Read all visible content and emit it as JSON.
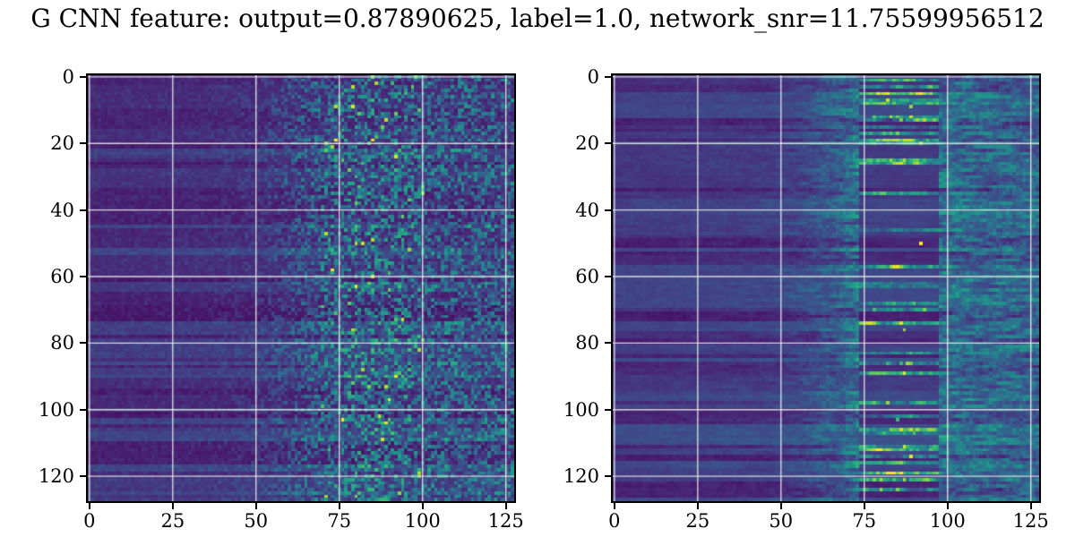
{
  "figure": {
    "title": "G CNN feature: output=0.87890625, label=1.0, network_snr=11.75599956512",
    "title_truncated_both_sides": true,
    "background": "#ffffff",
    "font_color": "#000000"
  },
  "chart_data": [
    {
      "panel": "left",
      "type": "heatmap",
      "title": "",
      "xlabel": "",
      "ylabel": "",
      "shape": [
        128,
        128
      ],
      "xlim": [
        -0.5,
        127.5
      ],
      "ylim": [
        127.5,
        -0.5
      ],
      "xticks": [
        0,
        25,
        50,
        75,
        100,
        125
      ],
      "yticks": [
        0,
        20,
        40,
        60,
        80,
        100,
        120
      ],
      "grid": true,
      "grid_color": "#e8e8e8",
      "colormap": "viridis",
      "value_range": [
        0,
        1
      ],
      "pattern": {
        "description": "smooth dark purple/indigo horizontal row bands for x<50, increasing cyan speckle noise from x~50, dense bright speckles with green/yellow hotspots for x~72-100, moderate speckle for x>100",
        "seed": 1337,
        "row_base_range": [
          0.05,
          0.21
        ],
        "row_change_prob": 0.45,
        "noise_profile": [
          [
            0,
            0.05
          ],
          [
            35,
            0.07
          ],
          [
            50,
            0.12
          ],
          [
            58,
            0.22
          ],
          [
            68,
            0.38
          ],
          [
            75,
            0.5
          ],
          [
            95,
            0.52
          ],
          [
            103,
            0.4
          ],
          [
            127,
            0.42
          ]
        ],
        "streaky": false,
        "hotspot_band": [
          70,
          100
        ],
        "hotspot_rate": 0.02
      }
    },
    {
      "panel": "right",
      "type": "heatmap",
      "title": "",
      "xlabel": "",
      "ylabel": "",
      "shape": [
        128,
        128
      ],
      "xlim": [
        -0.5,
        127.5
      ],
      "ylim": [
        127.5,
        -0.5
      ],
      "xticks": [
        0,
        25,
        50,
        75,
        100,
        125
      ],
      "yticks": [
        0,
        20,
        40,
        60,
        80,
        100,
        120
      ],
      "grid": true,
      "grid_color": "#e8e8e8",
      "colormap": "viridis",
      "value_range": [
        0,
        1
      ],
      "pattern": {
        "description": "smooth dark purple/indigo row bands for x<55, faint teal horizontal streaks 55-75, strong bright horizontal streaks with yellow hotspots concentrated x~75-97, diffuse teal speckle for x>100",
        "seed": 90125,
        "row_base_range": [
          0.05,
          0.21
        ],
        "row_change_prob": 0.45,
        "noise_profile": [
          [
            0,
            0.04
          ],
          [
            45,
            0.07
          ],
          [
            55,
            0.12
          ],
          [
            68,
            0.28
          ],
          [
            76,
            0.5
          ],
          [
            90,
            0.55
          ],
          [
            98,
            0.4
          ],
          [
            110,
            0.33
          ],
          [
            127,
            0.34
          ]
        ],
        "streaky": true,
        "streak_band": [
          74,
          97
        ],
        "hotspot_band": [
          78,
          94
        ],
        "hotspot_rate": 0.03
      }
    }
  ],
  "axes_geometry": {
    "panel_size": 476,
    "panel_tops": 84,
    "panel_lefts": [
      98,
      684
    ]
  },
  "viridis_stops": [
    [
      0.0,
      68,
      1,
      84
    ],
    [
      0.1,
      72,
      36,
      117
    ],
    [
      0.2,
      65,
      68,
      135
    ],
    [
      0.3,
      53,
      95,
      141
    ],
    [
      0.4,
      42,
      120,
      142
    ],
    [
      0.5,
      33,
      144,
      140
    ],
    [
      0.6,
      34,
      168,
      132
    ],
    [
      0.7,
      68,
      190,
      112
    ],
    [
      0.8,
      122,
      209,
      81
    ],
    [
      0.9,
      189,
      223,
      38
    ],
    [
      1.0,
      253,
      231,
      37
    ]
  ]
}
